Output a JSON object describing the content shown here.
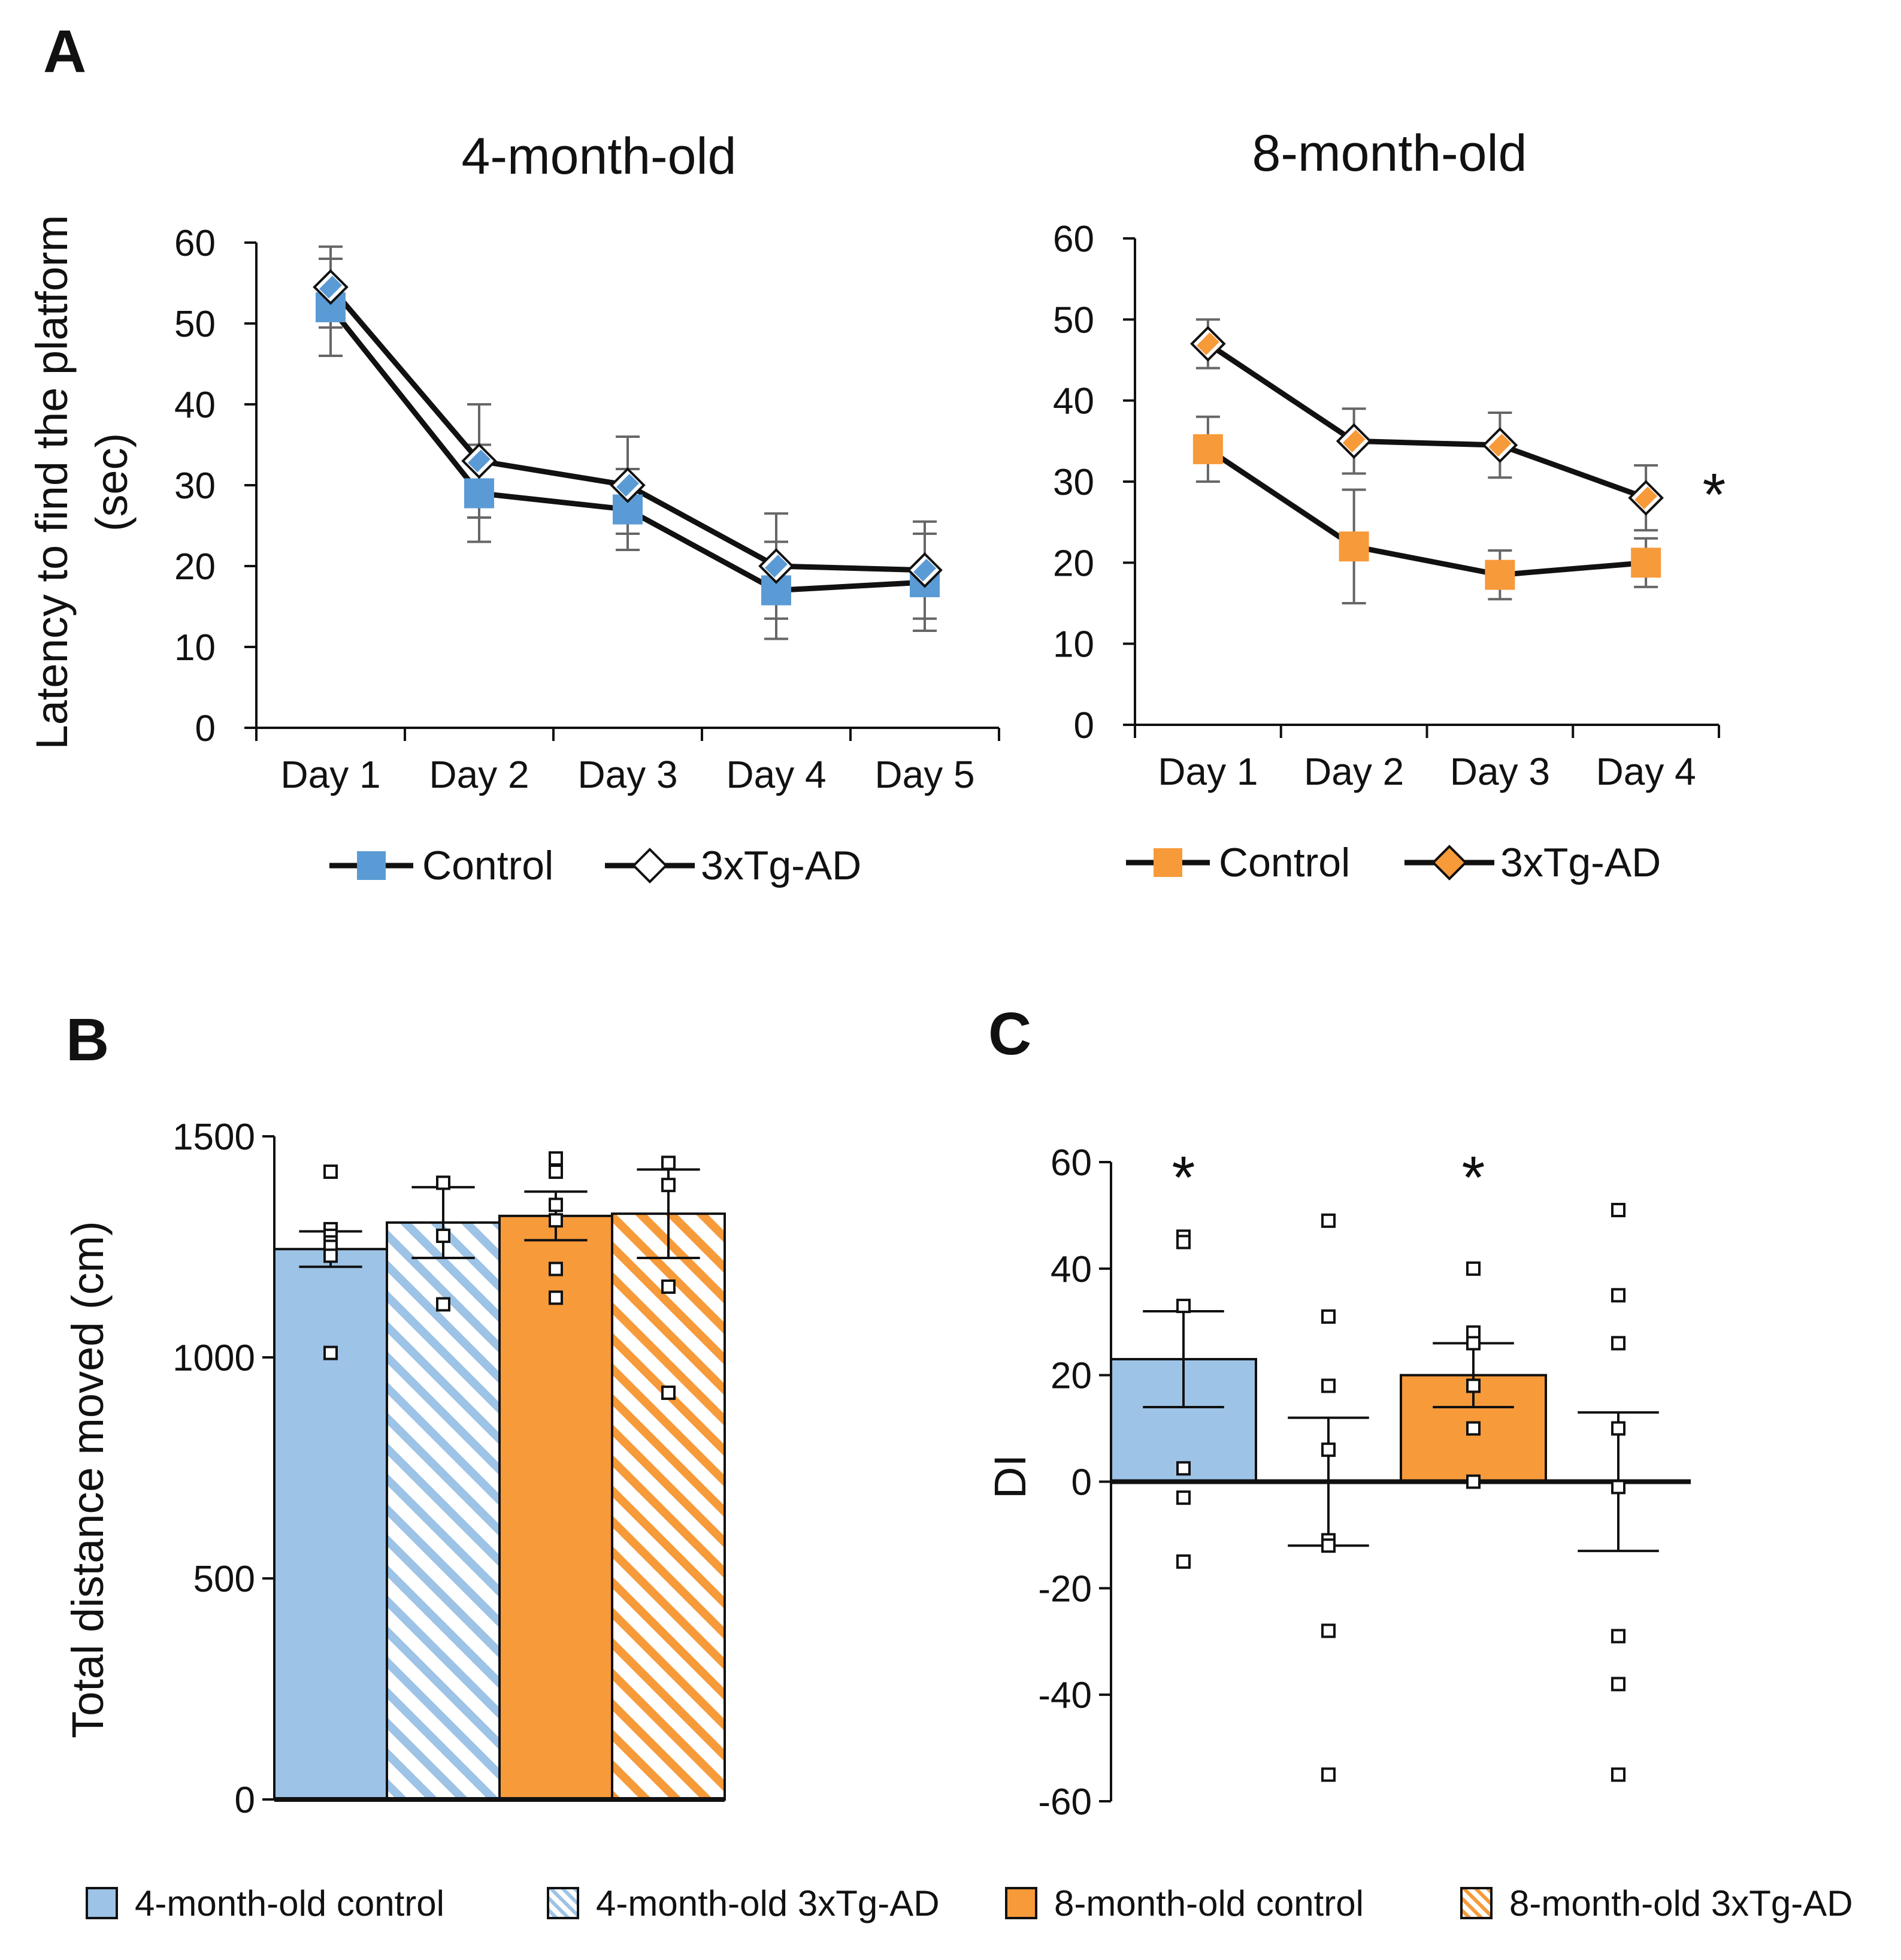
{
  "colors": {
    "control_4m": "#5b9bd5",
    "bar_4m": "#9dc3e6",
    "accent_8m": "#f79a3a",
    "axis": "#111111",
    "error_bar": "#666666",
    "marker_open": "#ffffff"
  },
  "panel_labels": {
    "a": "A",
    "b": "B",
    "c": "C"
  },
  "significance_marker": "*",
  "shared": {
    "ylabel_a_line1": "Latency to find the platform",
    "ylabel_a_line2": "(sec)"
  },
  "chart_data": [
    {
      "id": "A1",
      "type": "line",
      "title": "4-month-old",
      "categories": [
        "Day 1",
        "Day 2",
        "Day 3",
        "Day 4",
        "Day 5"
      ],
      "ylim": [
        0,
        60
      ],
      "yticks": [
        "0",
        "10",
        "20",
        "30",
        "40",
        "50",
        "60"
      ],
      "series": [
        {
          "name": "Control",
          "marker": "square",
          "color": "#5b9bd5",
          "values": [
            52,
            29,
            27,
            17,
            18
          ],
          "errors": [
            6,
            6,
            5,
            6,
            6
          ]
        },
        {
          "name": "3xTg-AD",
          "marker": "diamond-open",
          "color": "#5b9bd5",
          "values": [
            54.5,
            33,
            30,
            20,
            19.5
          ],
          "errors": [
            5,
            7,
            6,
            6.5,
            6
          ]
        }
      ],
      "legend": {
        "control": "Control",
        "tg": "3xTg-AD"
      }
    },
    {
      "id": "A2",
      "type": "line",
      "title": "8-month-old",
      "categories": [
        "Day 1",
        "Day 2",
        "Day 3",
        "Day 4"
      ],
      "ylim": [
        0,
        60
      ],
      "yticks": [
        "0",
        "10",
        "20",
        "30",
        "40",
        "50",
        "60"
      ],
      "series": [
        {
          "name": "Control",
          "marker": "square",
          "color": "#f79a3a",
          "values": [
            34,
            22,
            18.5,
            20
          ],
          "errors": [
            4,
            7,
            3,
            3
          ]
        },
        {
          "name": "3xTg-AD",
          "marker": "diamond-open",
          "color": "#f79a3a",
          "values": [
            47,
            35,
            34.5,
            28
          ],
          "errors": [
            3,
            4,
            4,
            4
          ]
        }
      ],
      "significance": "*",
      "legend": {
        "control": "Control",
        "tg": "3xTg-AD"
      }
    },
    {
      "id": "B",
      "type": "bar",
      "title": "",
      "ylabel": "Total distance moved (cm)",
      "ylim": [
        0,
        1500
      ],
      "yticks": [
        "0",
        "500",
        "1000",
        "1500"
      ],
      "categories": [
        "4-month-old control",
        "4-month-old 3xTg-AD",
        "8-month-old control",
        "8-month-old 3xTg-AD"
      ],
      "values": [
        1245,
        1305,
        1320,
        1325
      ],
      "errors": [
        40,
        80,
        55,
        100
      ],
      "points": [
        [
          1420,
          1290,
          1275,
          1260,
          1250,
          1230,
          1010
        ],
        [
          1395,
          1275,
          1120
        ],
        [
          1450,
          1420,
          1345,
          1310,
          1200,
          1135
        ],
        [
          1440,
          1390,
          1160,
          920
        ]
      ]
    },
    {
      "id": "C",
      "type": "bar",
      "title": "",
      "ylabel": "DI",
      "ylim": [
        -60,
        60
      ],
      "yticks": [
        "-60",
        "-40",
        "-20",
        "0",
        "20",
        "40",
        "60"
      ],
      "categories": [
        "4-month-old control",
        "4-month-old 3xTg-AD",
        "8-month-old control",
        "8-month-old 3xTg-AD"
      ],
      "values": [
        23,
        0,
        20,
        0
      ],
      "errors": [
        9,
        12,
        6,
        13
      ],
      "significance": [
        "*",
        "",
        "*",
        ""
      ],
      "points": [
        [
          46,
          45,
          33,
          2.5,
          -3,
          -15
        ],
        [
          49,
          31,
          18,
          6,
          -11,
          -12,
          -28,
          -55
        ],
        [
          40,
          28,
          26,
          18,
          10,
          0
        ],
        [
          51,
          35,
          26,
          10,
          -1,
          -29,
          -38,
          -55
        ]
      ]
    }
  ],
  "legend_bottom": [
    {
      "label": "4-month-old control",
      "fill": "#9dc3e6",
      "hatch": false
    },
    {
      "label": "4-month-old 3xTg-AD",
      "fill": "#9dc3e6",
      "hatch": true
    },
    {
      "label": "8-month-old control",
      "fill": "#f79a3a",
      "hatch": false
    },
    {
      "label": "8-month-old 3xTg-AD",
      "fill": "#f79a3a",
      "hatch": true
    }
  ]
}
